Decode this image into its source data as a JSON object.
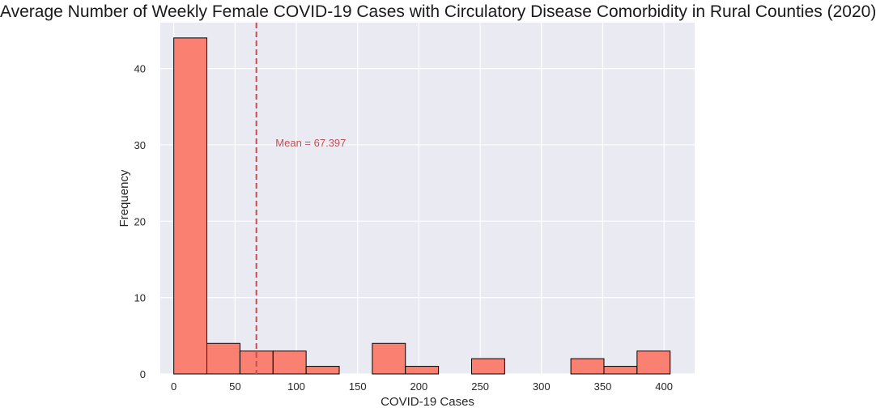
{
  "chart_data": {
    "type": "bar",
    "title": "Average Number of Weekly Female COVID-19 Cases with Circulatory Disease Comorbidity in Rural Counties (2020)",
    "xlabel": "COVID-19 Cases",
    "ylabel": "Frequency",
    "xlim": [
      -11,
      425
    ],
    "ylim": [
      0,
      46
    ],
    "xticks": [
      0,
      50,
      100,
      150,
      200,
      250,
      300,
      350,
      400
    ],
    "yticks": [
      0,
      10,
      20,
      30,
      40
    ],
    "bin_edges": [
      0,
      27,
      54,
      81,
      108,
      135,
      162,
      189,
      216,
      243,
      270,
      297,
      324,
      351,
      378,
      405
    ],
    "values": [
      44,
      4,
      3,
      3,
      1,
      0,
      4,
      1,
      0,
      2,
      0,
      0,
      2,
      1,
      3
    ],
    "mean_line": {
      "value": 67.397,
      "label": "Mean = 67.397",
      "label_x": 83,
      "label_y": 30
    },
    "grid": true,
    "colors": {
      "bar": "#fa8072",
      "bar_edge": "#000000",
      "mean": "#c44e52",
      "plot_bg": "#eaeaf2",
      "grid": "#ffffff"
    }
  }
}
